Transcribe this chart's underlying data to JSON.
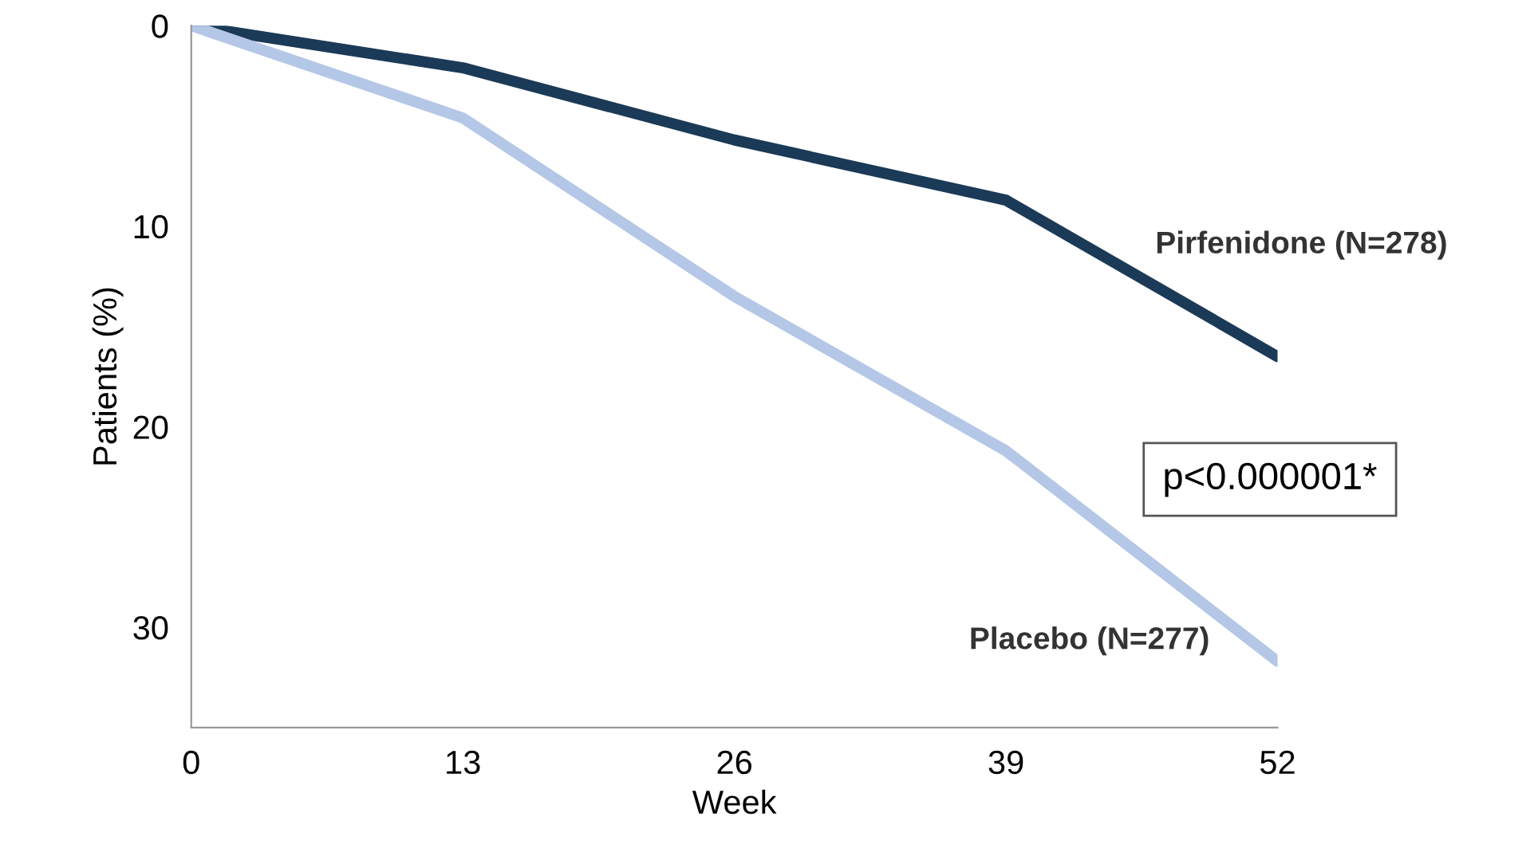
{
  "chart_data": {
    "type": "line",
    "xlabel": "Week",
    "ylabel": "Patients (%)",
    "x": [
      0,
      13,
      26,
      39,
      52
    ],
    "xlim": [
      0,
      52
    ],
    "xticks": [
      0,
      13,
      26,
      39,
      52
    ],
    "ylim": [
      35,
      0
    ],
    "yticks": [
      0,
      10,
      20,
      30
    ],
    "grid": false,
    "legend": false,
    "marker": "none",
    "line_style": "solid",
    "series": [
      {
        "name": "Pirfenidone (N=278)",
        "color": "#1b3a57",
        "values": [
          0,
          2.1,
          5.7,
          8.7,
          16.5
        ]
      },
      {
        "name": "Placebo (N=277)",
        "color": "#b4c7e7",
        "values": [
          0,
          4.6,
          13.5,
          21.2,
          31.7
        ]
      }
    ],
    "annotations": [
      "p<0.000001*"
    ]
  }
}
